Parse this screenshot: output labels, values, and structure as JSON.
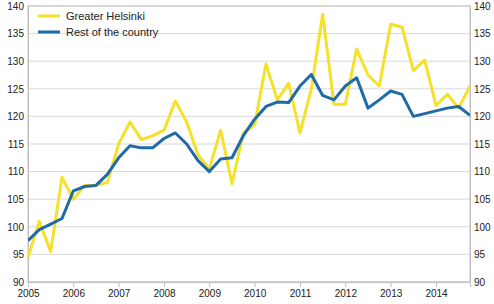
{
  "chart_data": {
    "type": "line",
    "categories": [
      "2005",
      null,
      null,
      null,
      "2006",
      null,
      null,
      null,
      "2007",
      null,
      null,
      null,
      "2008",
      null,
      null,
      null,
      "2009",
      null,
      null,
      null,
      "2010",
      null,
      null,
      null,
      "2011",
      null,
      null,
      null,
      "2012",
      null,
      null,
      null,
      "2013",
      null,
      null,
      null,
      "2014",
      null,
      null,
      null
    ],
    "series": [
      {
        "name": "Greater Helsinki",
        "color": "#f5e02a",
        "values": [
          94.5,
          101,
          95.5,
          109,
          105,
          107.5,
          107.5,
          108,
          115,
          119,
          115.8,
          116.5,
          117.5,
          122.8,
          119,
          113,
          110.5,
          117.5,
          107.8,
          117,
          118.5,
          129.5,
          123,
          126,
          117,
          125,
          138.5,
          122.2,
          122.2,
          132.2,
          127.5,
          125.5,
          136.7,
          136.2,
          128.3,
          130.2,
          122,
          124,
          121.5,
          125.5
        ]
      },
      {
        "name": "Rest of the country",
        "color": "#1f6aa8",
        "values": [
          97.5,
          99.5,
          100.5,
          101.5,
          106.5,
          107.3,
          107.5,
          109.5,
          112.5,
          114.7,
          114.3,
          114.3,
          116,
          117,
          115,
          112,
          110,
          112.3,
          112.5,
          116.5,
          119.5,
          121.8,
          122.6,
          122.5,
          125.5,
          127.6,
          123.8,
          123,
          125.5,
          127,
          121.5,
          123,
          124.6,
          124,
          120,
          120.5,
          121,
          121.5,
          121.8,
          120.2
        ]
      }
    ],
    "ylim": [
      90,
      140
    ],
    "yticks": [
      90,
      95,
      100,
      105,
      110,
      115,
      120,
      125,
      130,
      135,
      140
    ],
    "y2lim": [
      90,
      140
    ],
    "y2ticks": [
      90,
      95,
      100,
      105,
      110,
      115,
      120,
      125,
      130,
      135,
      140
    ],
    "grid": true,
    "legend": "upper left"
  }
}
